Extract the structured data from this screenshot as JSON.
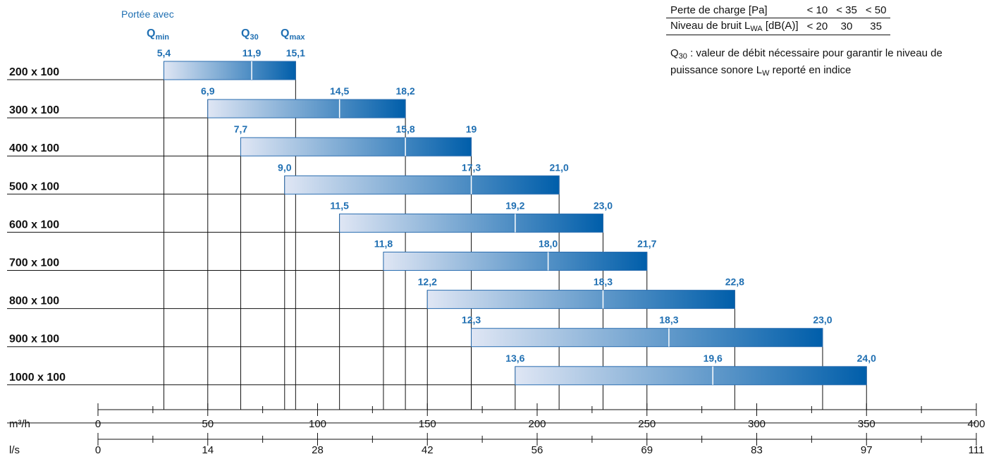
{
  "chart_data": {
    "type": "bar",
    "subtype": "floating-range",
    "categories": [
      "200 x 100",
      "300 x 100",
      "400 x 100",
      "500 x 100",
      "600 x 100",
      "700 x 100",
      "800 x 100",
      "900 x 100",
      "1000 x 100"
    ],
    "series": [
      {
        "q_min_ms": [
          "5,4",
          "6,9",
          "7,7",
          "9,0",
          "11,5",
          "11,8",
          "12,2",
          "12,3",
          "13,6"
        ],
        "q30_ms": [
          "11,9",
          "14,5",
          "15,8",
          "17,3",
          "19,2",
          "18,0",
          "18,3",
          "18,3",
          "19,6"
        ],
        "q_max_ms": [
          "15,1",
          "18,2",
          "19",
          "21,0",
          "23,0",
          "21,7",
          "22,8",
          "23,0",
          "24,0"
        ]
      }
    ],
    "flow_m3h": [
      {
        "min": 30,
        "q30": 70,
        "max": 90
      },
      {
        "min": 50,
        "q30": 110,
        "max": 140
      },
      {
        "min": 65,
        "q30": 140,
        "max": 170
      },
      {
        "min": 85,
        "q30": 170,
        "max": 210
      },
      {
        "min": 110,
        "q30": 190,
        "max": 230
      },
      {
        "min": 130,
        "q30": 205,
        "max": 250
      },
      {
        "min": 150,
        "q30": 230,
        "max": 290
      },
      {
        "min": 170,
        "q30": 260,
        "max": 330
      },
      {
        "min": 190,
        "q30": 280,
        "max": 350
      }
    ],
    "axis_m3h": {
      "label": "m³/h",
      "ticks": [
        "0",
        "50",
        "100",
        "150",
        "200",
        "250",
        "300",
        "350",
        "400"
      ],
      "range": [
        0,
        400
      ],
      "minor_step": 25
    },
    "axis_ls": {
      "label": "l/s",
      "ticks": [
        "0",
        "14",
        "28",
        "42",
        "56",
        "69",
        "83",
        "97",
        "111"
      ]
    },
    "header": {
      "portee": "Portée avec",
      "q_min": {
        "main": "Q",
        "sub": "min"
      },
      "q30": {
        "main": "Q",
        "sub": "30"
      },
      "q_max": {
        "main": "Q",
        "sub": "max"
      }
    },
    "colors": {
      "bar_start": "#dfe6f4",
      "bar_end": "#005eaa",
      "value_text": "#1f6fb2",
      "lines": "#111111"
    }
  },
  "legend": {
    "row1": {
      "label": "Perte de charge [Pa]",
      "values": [
        "< 10",
        "< 35",
        "< 50"
      ]
    },
    "row2": {
      "label_main": "Niveau de bruit L",
      "label_sub": "WA",
      "label_tail": " [dB(A)]",
      "values": [
        "< 20",
        "30",
        "35"
      ]
    },
    "note": {
      "q": "Q",
      "q_sub": "30",
      "text1": " : valeur de débit nécessaire pour garantir le niveau de puissance sonore L",
      "l_sub": "W",
      "text2": " reporté en indice"
    }
  }
}
